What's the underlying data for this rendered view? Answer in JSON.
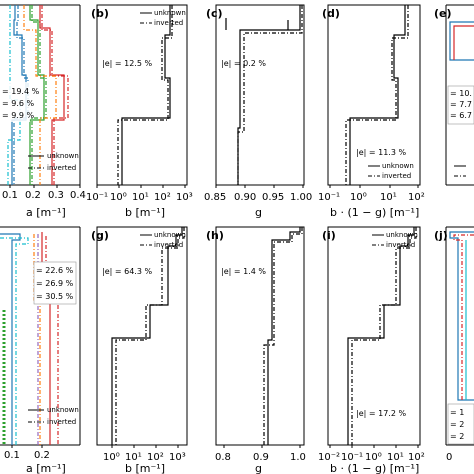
{
  "chart_data": [
    {
      "panel": "",
      "xlabel": "a [m⁻¹]",
      "xticks": [
        "0.1",
        "0.2",
        "0.3",
        "0.4"
      ],
      "errors": [
        "= 19.4 %",
        "= 9.6 %",
        "= 9.9 %"
      ],
      "legend": [
        "unknown",
        "inverted"
      ]
    },
    {
      "panel": "(b)",
      "type": "step",
      "xlabel": "b [m⁻¹]",
      "xticks": [
        "10⁻¹",
        "10⁰",
        "10¹",
        "10²",
        "10³"
      ],
      "xscale": "log",
      "xlim": [
        0.1,
        1000
      ],
      "legend": [
        "unknown",
        "inverted"
      ],
      "legend_loc": "top-right",
      "error": "|e| = 12.5 %",
      "series": [
        {
          "name": "unknown",
          "values": [
            500,
            500,
            80,
            80,
            18,
            18,
            0.4,
            0.4
          ],
          "boundaries": [
            0,
            0.1,
            0.3,
            0.45,
            0.52,
            0.6,
            0.65,
            1.0
          ]
        },
        {
          "name": "inverted",
          "values": [
            500,
            500,
            60,
            60,
            15,
            15,
            0.3,
            0.3
          ],
          "boundaries": [
            0,
            0.12,
            0.3,
            0.48,
            0.52,
            0.62,
            0.65,
            1.0
          ]
        }
      ]
    },
    {
      "panel": "(c)",
      "type": "step",
      "xlabel": "g",
      "xticks": [
        "0.85",
        "0.90",
        "0.95",
        "1.00"
      ],
      "xlim": [
        0.85,
        1.0
      ],
      "error": "|e| = 0.2 %",
      "series": [
        {
          "name": "unknown",
          "values": [
            0.99,
            0.9,
            0.9,
            0.88
          ],
          "boundaries": [
            0,
            0.1,
            0.6,
            0.65,
            1.0
          ]
        },
        {
          "name": "inverted",
          "values": [
            0.99,
            0.9,
            0.89,
            0.88
          ],
          "boundaries": [
            0,
            0.1,
            0.6,
            0.7,
            1.0
          ]
        }
      ]
    },
    {
      "panel": "(d)",
      "type": "step",
      "xlabel": "b · (1 − g) [m⁻¹]",
      "xticks": [
        "10⁻¹",
        "10⁰",
        "10¹",
        "10²"
      ],
      "xscale": "log",
      "xlim": [
        0.1,
        100
      ],
      "legend": [
        "unknown",
        "inverted"
      ],
      "legend_loc": "bottom-right",
      "error": "|e| = 11.3 %",
      "series": [
        {
          "name": "unknown",
          "values": [
            60,
            60,
            4,
            4,
            1.5,
            1.5,
            0.13,
            0.13
          ],
          "boundaries": [
            0,
            0.1,
            0.3,
            0.45,
            0.52,
            0.6,
            0.65,
            1.0
          ]
        },
        {
          "name": "inverted",
          "values": [
            60,
            60,
            3,
            3,
            1.2,
            1.2,
            0.1,
            0.1
          ],
          "boundaries": [
            0,
            0.12,
            0.3,
            0.48,
            0.52,
            0.62,
            0.65,
            1.0
          ]
        }
      ]
    },
    {
      "panel": "(e)",
      "errors": [
        "= 10.",
        "= 7.7",
        "= 6.7"
      ]
    },
    {
      "panel": "",
      "xlabel": "a [m⁻¹]",
      "xticks": [
        "0.1",
        "0.2"
      ],
      "errors": [
        "= 22.6 %",
        "= 26.9 %",
        "= 30.5 %"
      ],
      "legend": [
        "unknown",
        "inverted"
      ]
    },
    {
      "panel": "(g)",
      "type": "step",
      "xlabel": "b [m⁻¹]",
      "xticks": [
        "10⁰",
        "10¹",
        "10²",
        "10³"
      ],
      "xscale": "log",
      "xlim": [
        0.3,
        1500
      ],
      "legend": [
        "unknown",
        "inverted"
      ],
      "legend_loc": "top-right",
      "error": "|e| = 64.3 %",
      "series": [
        {
          "name": "unknown",
          "values": [
            800,
            500,
            80,
            20,
            0.5,
            0.5
          ],
          "boundaries": [
            0,
            0.04,
            0.1,
            0.3,
            0.52,
            0.58,
            1.0
          ]
        },
        {
          "name": "inverted",
          "values": [
            1000,
            400,
            40,
            10,
            0.6,
            0.6
          ],
          "boundaries": [
            0,
            0.04,
            0.1,
            0.3,
            0.52,
            0.6,
            1.0
          ]
        }
      ]
    },
    {
      "panel": "(h)",
      "type": "step",
      "xlabel": "g",
      "xticks": [
        "0.8",
        "0.9",
        "1.0"
      ],
      "xlim": [
        0.78,
        1.02
      ],
      "error": "|e| = 1.4 %",
      "series": [
        {
          "name": "unknown",
          "values": [
            1.0,
            0.96,
            0.91,
            0.91
          ],
          "boundaries": [
            0,
            0.03,
            0.08,
            0.55,
            1.0
          ]
        },
        {
          "name": "inverted",
          "values": [
            1.0,
            0.96,
            0.9,
            0.9
          ],
          "boundaries": [
            0,
            0.03,
            0.08,
            0.6,
            1.0
          ]
        }
      ]
    },
    {
      "panel": "(i)",
      "type": "step",
      "xlabel": "b · (1 − g) [m⁻¹]",
      "xticks": [
        "10⁻²",
        "10⁻¹",
        "10⁰",
        "10¹",
        "10²"
      ],
      "xscale": "log",
      "xlim": [
        0.01,
        200
      ],
      "legend": [
        "unknown",
        "inverted"
      ],
      "legend_loc": "top-right",
      "error": "|e| = 17.2 %",
      "series": [
        {
          "name": "unknown",
          "values": [
            60,
            30,
            8,
            2,
            0.05,
            0.05
          ],
          "boundaries": [
            0,
            0.04,
            0.1,
            0.3,
            0.52,
            0.58,
            1.0
          ]
        },
        {
          "name": "inverted",
          "values": [
            80,
            20,
            5,
            1,
            0.06,
            0.06
          ],
          "boundaries": [
            0,
            0.04,
            0.1,
            0.3,
            0.52,
            0.6,
            1.0
          ]
        }
      ]
    },
    {
      "panel": "(j)",
      "errors": [
        "= 1",
        "= 2",
        "= 2"
      ]
    }
  ],
  "colors": {
    "frame": "#000000",
    "blue": "#1f77b4",
    "orange": "#ff7f0e",
    "green": "#2ca02c",
    "red": "#d62728",
    "cyan": "#17becf",
    "purple": "#9467bd"
  }
}
